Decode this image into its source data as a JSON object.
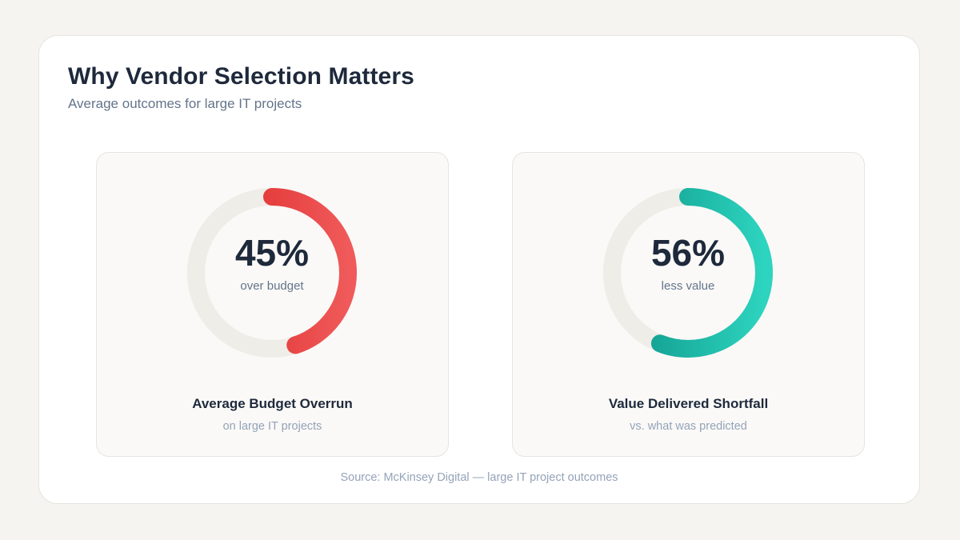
{
  "header": {
    "title": "Why Vendor Selection Matters",
    "subtitle": "Average outcomes for large IT projects"
  },
  "chart_data": [
    {
      "type": "donut",
      "value": 45,
      "max": 100,
      "value_label": "45%",
      "unit_label": "over budget",
      "title": "Average Budget Overrun",
      "subtitle": "on large IT projects",
      "colors": {
        "start": "#dc2626",
        "end": "#f05a5a",
        "track": "#efede8"
      }
    },
    {
      "type": "donut",
      "value": 56,
      "max": 100,
      "value_label": "56%",
      "unit_label": "less value",
      "title": "Value Delivered Shortfall",
      "subtitle": "vs. what was predicted",
      "colors": {
        "start": "#0d9488",
        "end": "#2dd4bf",
        "track": "#efede8"
      }
    }
  ],
  "footer": {
    "source": "Source: McKinsey Digital — large IT project outcomes"
  }
}
